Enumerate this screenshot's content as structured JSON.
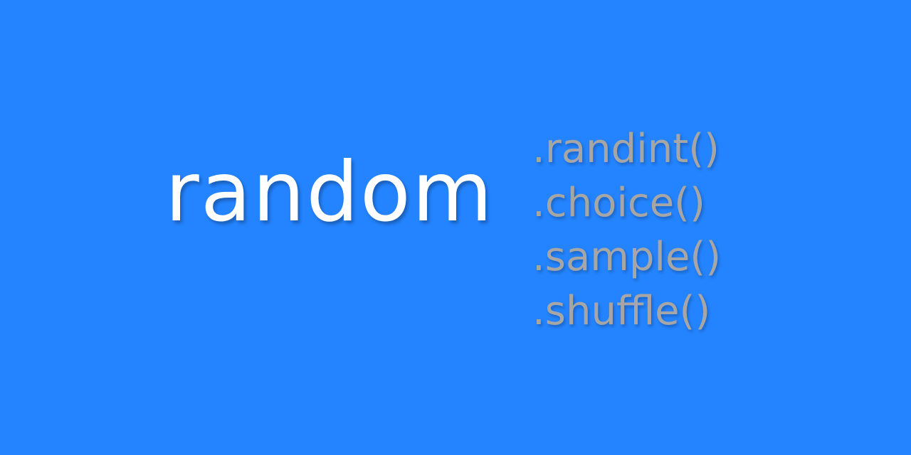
{
  "banner": {
    "module_name": "random",
    "methods": [
      ".randint()",
      ".choice()",
      ".sample()",
      ".shuffle()"
    ]
  },
  "colors": {
    "background": "#2484ff",
    "module_text": "#ffffff",
    "method_text": "#a6a6a6"
  }
}
